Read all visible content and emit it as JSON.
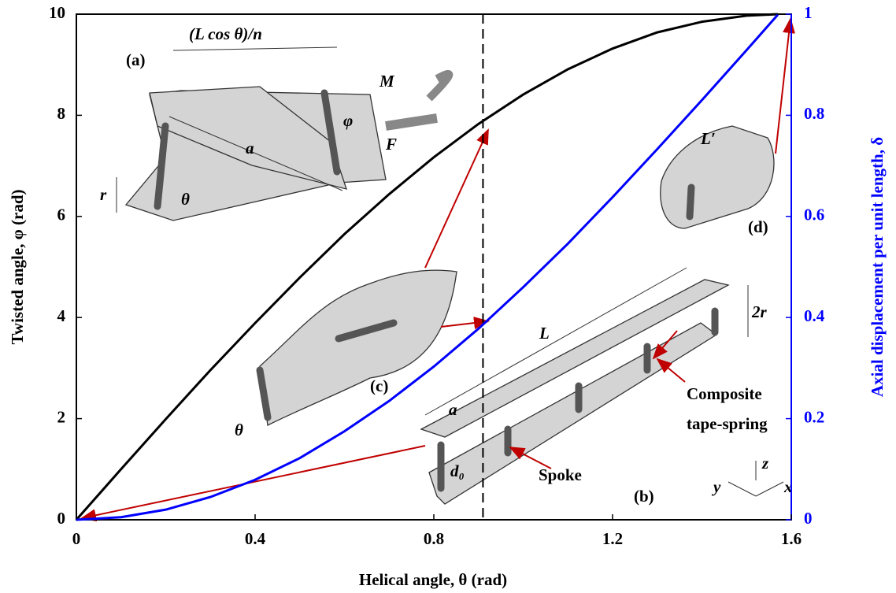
{
  "chart_data": {
    "type": "line",
    "x_label": "Helical angle, θ (rad)",
    "y_label": "Twisted angle, φ (rad)",
    "y2_label": "Axial displacement per unit length, δ",
    "x": [
      0,
      0.1,
      0.2,
      0.3,
      0.4,
      0.5,
      0.6,
      0.7,
      0.8,
      0.9,
      1.0,
      1.1,
      1.2,
      1.3,
      1.4,
      1.5,
      1.57
    ],
    "series": [
      {
        "color": "#000000",
        "values": [
          0,
          1.0,
          1.99,
          2.96,
          3.89,
          4.79,
          5.65,
          6.44,
          7.17,
          7.83,
          8.41,
          8.91,
          9.32,
          9.64,
          9.85,
          9.97,
          10.0
        ]
      },
      {
        "color": "#0000ff",
        "axis": "y2",
        "values": [
          0,
          0.005,
          0.02,
          0.045,
          0.079,
          0.122,
          0.175,
          0.235,
          0.303,
          0.378,
          0.46,
          0.546,
          0.638,
          0.733,
          0.83,
          0.929,
          0.999
        ]
      }
    ],
    "xlim": [
      0,
      1.6
    ],
    "xticks": [
      0,
      0.4,
      0.8,
      1.2,
      1.6
    ],
    "ylim": [
      0,
      10
    ],
    "yticks": [
      0,
      2,
      4,
      6,
      8,
      10
    ],
    "y2lim": [
      0,
      1
    ],
    "y2ticks": [
      0,
      0.2,
      0.4,
      0.6,
      0.8,
      1
    ],
    "vline": 0.91,
    "annotations": [
      "(a)",
      "(L cos θ)/n",
      "M",
      "F",
      "φ",
      "a",
      "r",
      "θ",
      "(c)",
      "θ",
      "L",
      "a",
      "2r",
      "Composite",
      "tape-spring",
      "Spoke",
      "d₀",
      "(b)",
      "y",
      "z",
      "x",
      "L′",
      "(d)"
    ]
  }
}
